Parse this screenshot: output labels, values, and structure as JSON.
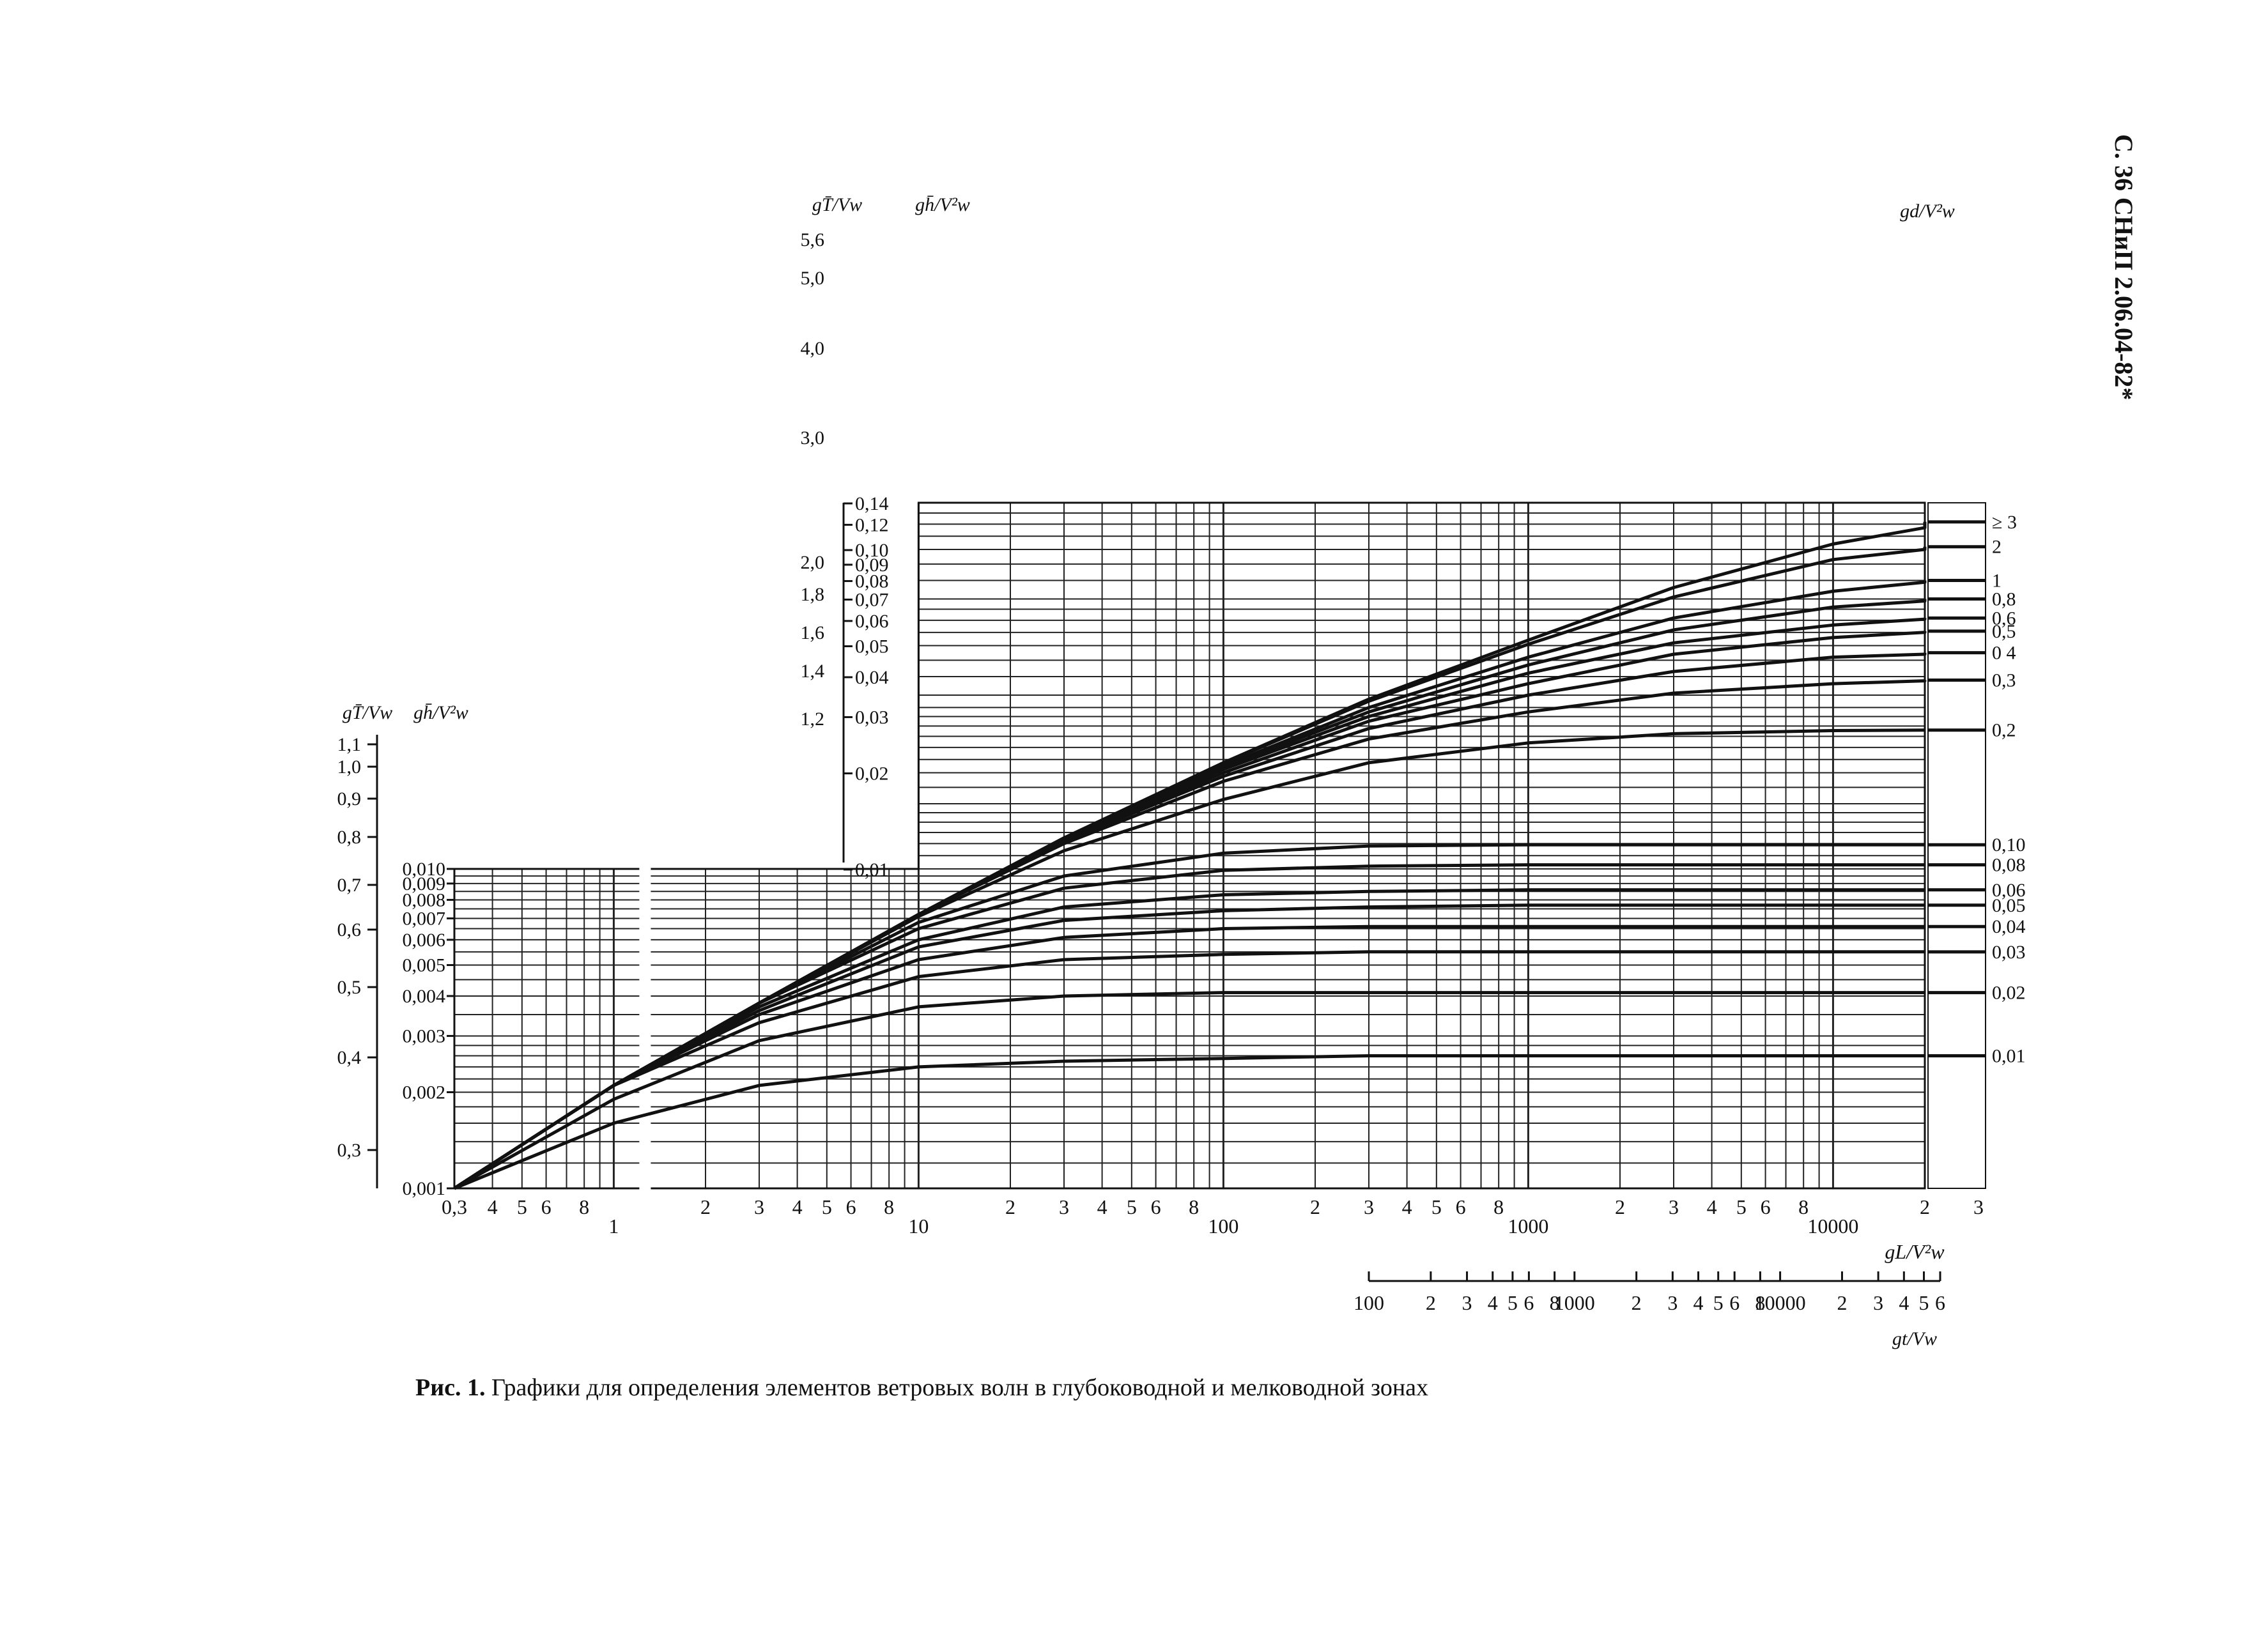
{
  "page_header": "С. 36 СНиП 2.06.04-82*",
  "caption": {
    "label": "Рис. 1.",
    "text": "Графики для определения элементов ветровых волн в глубоководной и мелководной зонах"
  },
  "chart_data": {
    "type": "line",
    "title": "",
    "xscale": "log",
    "yscale": "log",
    "grid": true,
    "xlim": [
      0.3,
      30000
    ],
    "x_axis_label": "gL/V²w",
    "x_ticks": [
      "0,3",
      "4",
      "5",
      "6",
      "8",
      "1",
      "2",
      "3",
      "4",
      "5",
      "6",
      "8",
      "10",
      "2",
      "3",
      "4",
      "5",
      "6",
      "8",
      "100",
      "2",
      "3",
      "4",
      "5",
      "6",
      "8",
      "1000",
      "2",
      "3",
      "4",
      "5",
      "6",
      "8",
      "10000",
      "2",
      "3"
    ],
    "x2_axis_label": "gt/Vw",
    "x2_ticks": [
      "100",
      "2",
      "3",
      "4",
      "5",
      "6",
      "8",
      "1000",
      "2",
      "3",
      "4",
      "5",
      "6",
      "8",
      "10000",
      "2",
      "3",
      "4",
      "5",
      "6"
    ],
    "period_axis_label": "gT̄/Vw",
    "period_ticks_lower": [
      "1,1",
      "1,0",
      "0,9",
      "0,8",
      "0,7",
      "0,6",
      "0,5",
      "0,4",
      "0,3"
    ],
    "period_ticks_upper": [
      "5,6",
      "5,0",
      "4,0",
      "3,0",
      "2,0",
      "1,8",
      "1,6",
      "1,4",
      "1,2"
    ],
    "height_axis_label": "gh̄/V²w",
    "height_ticks_lower": [
      "0,010",
      "0,009",
      "0,008",
      "0,007",
      "0,006",
      "0,005",
      "0,004",
      "0,003",
      "0,002",
      "0,001"
    ],
    "height_ticks_upper": [
      "0,14",
      "0,12",
      "0,10",
      "0,09",
      "0,08",
      "0,07",
      "0,06",
      "0,05",
      "0,04",
      "0,03",
      "0,02",
      "0,01"
    ],
    "depth_axis_label": "gd/V²w",
    "series": [
      {
        "name": "≥ 3",
        "x": [
          0.3,
          1,
          3,
          10,
          30,
          100,
          300,
          1000,
          3000,
          10000,
          20000,
          30000
        ],
        "y": [
          0.001,
          0.0021,
          0.0038,
          0.0072,
          0.0125,
          0.0215,
          0.034,
          0.052,
          0.076,
          0.104,
          0.117,
          0.122
        ]
      },
      {
        "name": "2",
        "x": [
          0.3,
          1,
          3,
          10,
          30,
          100,
          300,
          1000,
          3000,
          10000,
          20000,
          30000
        ],
        "y": [
          0.001,
          0.0021,
          0.0038,
          0.0072,
          0.0125,
          0.0214,
          0.0335,
          0.0505,
          0.071,
          0.093,
          0.1,
          0.102
        ]
      },
      {
        "name": "1",
        "x": [
          0.3,
          1,
          3,
          10,
          30,
          100,
          300,
          1000,
          3000,
          10000,
          20000,
          30000
        ],
        "y": [
          0.001,
          0.0021,
          0.0038,
          0.0072,
          0.0124,
          0.021,
          0.032,
          0.046,
          0.061,
          0.074,
          0.079,
          0.08
        ]
      },
      {
        "name": "0,8",
        "x": [
          0.3,
          1,
          3,
          10,
          30,
          100,
          300,
          1000,
          3000,
          10000,
          20000,
          30000
        ],
        "y": [
          0.001,
          0.0021,
          0.0038,
          0.0072,
          0.0124,
          0.0208,
          0.031,
          0.0435,
          0.056,
          0.066,
          0.069,
          0.07
        ]
      },
      {
        "name": "0,6",
        "x": [
          0.3,
          1,
          3,
          10,
          30,
          100,
          300,
          1000,
          3000,
          10000,
          20000,
          30000
        ],
        "y": [
          0.001,
          0.0021,
          0.0038,
          0.0072,
          0.0124,
          0.0205,
          0.03,
          0.041,
          0.051,
          0.058,
          0.0605,
          0.061
        ]
      },
      {
        "name": "0,5",
        "x": [
          0.3,
          1,
          3,
          10,
          30,
          100,
          300,
          1000,
          3000,
          10000,
          20000,
          30000
        ],
        "y": [
          0.001,
          0.0021,
          0.0038,
          0.0072,
          0.0123,
          0.02,
          0.029,
          0.038,
          0.047,
          0.053,
          0.055,
          0.0555
        ]
      },
      {
        "name": "0 4",
        "x": [
          0.3,
          1,
          3,
          10,
          30,
          100,
          300,
          1000,
          3000,
          10000,
          20000,
          30000
        ],
        "y": [
          0.001,
          0.0021,
          0.0038,
          0.0072,
          0.0122,
          0.0195,
          0.0275,
          0.035,
          0.0415,
          0.046,
          0.047,
          0.0475
        ]
      },
      {
        "name": "0,3",
        "x": [
          0.3,
          1,
          3,
          10,
          30,
          100,
          300,
          1000,
          3000,
          10000,
          20000,
          30000
        ],
        "y": [
          0.001,
          0.0021,
          0.0038,
          0.0072,
          0.012,
          0.0188,
          0.0255,
          0.031,
          0.0355,
          0.038,
          0.0388,
          0.039
        ]
      },
      {
        "name": "0,2",
        "x": [
          0.3,
          1,
          3,
          10,
          30,
          100,
          300,
          1000,
          3000,
          10000,
          20000,
          30000
        ],
        "y": [
          0.001,
          0.0021,
          0.0038,
          0.0071,
          0.0114,
          0.0165,
          0.0215,
          0.0248,
          0.0265,
          0.0271,
          0.0272,
          0.0272
        ]
      },
      {
        "name": "0,10",
        "x": [
          0.3,
          1,
          3,
          10,
          30,
          100,
          300,
          1000,
          3000,
          10000,
          20000,
          30000
        ],
        "y": [
          0.001,
          0.0021,
          0.0038,
          0.0068,
          0.0095,
          0.0112,
          0.0118,
          0.0119,
          0.0119,
          0.0119,
          0.0119,
          0.0119
        ]
      },
      {
        "name": "0,08",
        "x": [
          0.3,
          1,
          3,
          10,
          30,
          100,
          300,
          1000,
          3000,
          10000,
          20000,
          30000
        ],
        "y": [
          0.001,
          0.0021,
          0.0038,
          0.0065,
          0.0087,
          0.0099,
          0.0102,
          0.0103,
          0.0103,
          0.0103,
          0.0103,
          0.0103
        ]
      },
      {
        "name": "0,06",
        "x": [
          0.3,
          1,
          3,
          10,
          30,
          100,
          300,
          1000,
          3000,
          10000,
          20000,
          30000
        ],
        "y": [
          0.001,
          0.0021,
          0.0037,
          0.006,
          0.0076,
          0.0083,
          0.0085,
          0.0086,
          0.0086,
          0.0086,
          0.0086,
          0.0086
        ]
      },
      {
        "name": "0,05",
        "x": [
          0.3,
          1,
          3,
          10,
          30,
          100,
          300,
          1000,
          3000,
          10000,
          20000,
          30000
        ],
        "y": [
          0.001,
          0.0021,
          0.0036,
          0.0057,
          0.0069,
          0.0074,
          0.0076,
          0.0077,
          0.0077,
          0.0077,
          0.0077,
          0.0077
        ]
      },
      {
        "name": "0,04",
        "x": [
          0.3,
          1,
          3,
          10,
          30,
          100,
          300,
          1000,
          3000,
          10000,
          20000,
          30000
        ],
        "y": [
          0.001,
          0.0021,
          0.0035,
          0.0052,
          0.0061,
          0.0065,
          0.0066,
          0.0066,
          0.0066,
          0.0066,
          0.0066,
          0.0066
        ]
      },
      {
        "name": "0,03",
        "x": [
          0.3,
          1,
          3,
          10,
          30,
          100,
          300,
          1000,
          3000,
          10000,
          20000,
          30000
        ],
        "y": [
          0.001,
          0.0021,
          0.0033,
          0.0046,
          0.0052,
          0.0054,
          0.0055,
          0.0055,
          0.0055,
          0.0055,
          0.0055,
          0.0055
        ]
      },
      {
        "name": "0,02",
        "x": [
          0.3,
          1,
          3,
          10,
          30,
          100,
          300,
          1000,
          3000,
          10000,
          20000,
          30000
        ],
        "y": [
          0.001,
          0.0019,
          0.0029,
          0.0037,
          0.004,
          0.0041,
          0.0041,
          0.0041,
          0.0041,
          0.0041,
          0.0041,
          0.0041
        ]
      },
      {
        "name": "0,01",
        "x": [
          0.3,
          1,
          3,
          10,
          30,
          100,
          300,
          1000,
          3000,
          10000,
          20000,
          30000
        ],
        "y": [
          0.001,
          0.0016,
          0.0021,
          0.0024,
          0.0025,
          0.00255,
          0.0026,
          0.0026,
          0.0026,
          0.0026,
          0.0026,
          0.0026
        ]
      }
    ]
  }
}
